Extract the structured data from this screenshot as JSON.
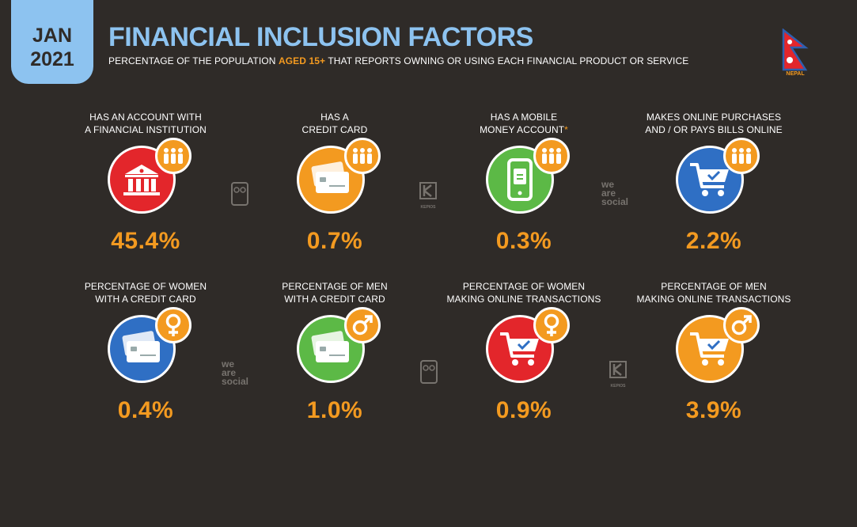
{
  "header": {
    "date_month": "JAN",
    "date_year": "2021",
    "title": "FINANCIAL INCLUSION FACTORS",
    "subtitle_pre": "PERCENTAGE OF THE POPULATION ",
    "subtitle_hl": "AGED 15+",
    "subtitle_post": " THAT REPORTS OWNING OR USING EACH FINANCIAL PRODUCT OR SERVICE",
    "country": "NEPAL"
  },
  "colors": {
    "red": "#e3262b",
    "orange": "#f39a20",
    "green": "#5cb946",
    "blue": "#2f6fc4",
    "title_blue": "#8dc3f0"
  },
  "watermarks": {
    "brand1_line1": "we",
    "brand1_line2": "are",
    "brand1_line3": "social",
    "brand2": "KEPIOS"
  },
  "chart_data": {
    "type": "table",
    "items": [
      {
        "label_1": "HAS AN ACCOUNT WITH",
        "label_2": "A FINANCIAL INSTITUTION",
        "value": 45.4,
        "display": "45.4%",
        "icon": "bank-icon",
        "badge": "people-icon",
        "color": "#e3262b"
      },
      {
        "label_1": "HAS A",
        "label_2": "CREDIT CARD",
        "value": 0.7,
        "display": "0.7%",
        "icon": "credit-card-icon",
        "badge": "people-icon",
        "color": "#f39a20"
      },
      {
        "label_1": "HAS A MOBILE",
        "label_2": "MONEY ACCOUNT",
        "footnote": "*",
        "value": 0.3,
        "display": "0.3%",
        "icon": "mobile-money-icon",
        "badge": "people-icon",
        "color": "#5cb946"
      },
      {
        "label_1": "MAKES ONLINE PURCHASES",
        "label_2": "AND / OR PAYS BILLS ONLINE",
        "value": 2.2,
        "display": "2.2%",
        "icon": "shopping-cart-icon",
        "badge": "people-icon",
        "color": "#2f6fc4"
      },
      {
        "label_1": "PERCENTAGE OF WOMEN",
        "label_2": "WITH A CREDIT CARD",
        "value": 0.4,
        "display": "0.4%",
        "icon": "credit-card-icon",
        "badge": "female-icon",
        "color": "#2f6fc4"
      },
      {
        "label_1": "PERCENTAGE OF MEN",
        "label_2": "WITH A CREDIT CARD",
        "value": 1.0,
        "display": "1.0%",
        "icon": "credit-card-icon",
        "badge": "male-icon",
        "color": "#5cb946"
      },
      {
        "label_1": "PERCENTAGE OF WOMEN",
        "label_2": "MAKING ONLINE TRANSACTIONS",
        "value": 0.9,
        "display": "0.9%",
        "icon": "shopping-cart-icon",
        "badge": "female-icon",
        "color": "#e3262b"
      },
      {
        "label_1": "PERCENTAGE OF MEN",
        "label_2": "MAKING ONLINE TRANSACTIONS",
        "value": 3.9,
        "display": "3.9%",
        "icon": "shopping-cart-icon",
        "badge": "male-icon",
        "color": "#f39a20"
      }
    ]
  }
}
